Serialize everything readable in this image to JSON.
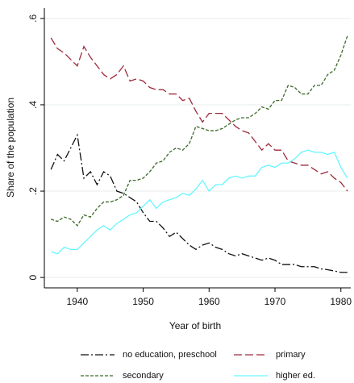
{
  "chart_data": {
    "type": "line",
    "ylabel": "Share of the population",
    "xlabel": "Year of birth",
    "x": [
      1936,
      1937,
      1938,
      1939,
      1940,
      1941,
      1942,
      1943,
      1944,
      1945,
      1946,
      1947,
      1948,
      1949,
      1950,
      1951,
      1952,
      1953,
      1954,
      1955,
      1956,
      1957,
      1958,
      1959,
      1960,
      1961,
      1962,
      1963,
      1964,
      1965,
      1966,
      1967,
      1968,
      1969,
      1970,
      1971,
      1972,
      1973,
      1974,
      1975,
      1976,
      1977,
      1978,
      1979,
      1980,
      1981
    ],
    "series": [
      {
        "name": "no education, preschool",
        "color": "#111111",
        "dash": "10,3,2,3",
        "values": [
          0.25,
          0.285,
          0.27,
          0.3,
          0.33,
          0.23,
          0.245,
          0.215,
          0.245,
          0.235,
          0.2,
          0.195,
          0.185,
          0.175,
          0.15,
          0.13,
          0.13,
          0.115,
          0.095,
          0.105,
          0.09,
          0.075,
          0.065,
          0.075,
          0.08,
          0.07,
          0.065,
          0.055,
          0.05,
          0.055,
          0.05,
          0.045,
          0.04,
          0.045,
          0.04,
          0.03,
          0.03,
          0.03,
          0.025,
          0.025,
          0.025,
          0.02,
          0.018,
          0.015,
          0.012,
          0.012
        ]
      },
      {
        "name": "primary",
        "color": "#9e2a3a",
        "dash": "10,4",
        "values": [
          0.555,
          0.53,
          0.52,
          0.505,
          0.49,
          0.535,
          0.51,
          0.49,
          0.47,
          0.46,
          0.47,
          0.49,
          0.455,
          0.46,
          0.455,
          0.44,
          0.435,
          0.435,
          0.425,
          0.425,
          0.41,
          0.415,
          0.385,
          0.36,
          0.38,
          0.38,
          0.38,
          0.365,
          0.35,
          0.34,
          0.335,
          0.315,
          0.295,
          0.31,
          0.295,
          0.295,
          0.27,
          0.265,
          0.26,
          0.26,
          0.25,
          0.24,
          0.245,
          0.23,
          0.22,
          0.2
        ]
      },
      {
        "name": "secondary",
        "color": "#3a6a28",
        "dash": "4,2",
        "values": [
          0.135,
          0.13,
          0.14,
          0.135,
          0.12,
          0.145,
          0.14,
          0.16,
          0.175,
          0.175,
          0.18,
          0.19,
          0.225,
          0.225,
          0.23,
          0.245,
          0.265,
          0.27,
          0.29,
          0.3,
          0.295,
          0.31,
          0.35,
          0.345,
          0.34,
          0.34,
          0.345,
          0.355,
          0.365,
          0.37,
          0.37,
          0.38,
          0.395,
          0.39,
          0.41,
          0.41,
          0.445,
          0.44,
          0.425,
          0.425,
          0.445,
          0.445,
          0.47,
          0.48,
          0.515,
          0.56
        ]
      },
      {
        "name": "higher ed.",
        "color": "#66f6ff",
        "dash": "none",
        "values": [
          0.06,
          0.055,
          0.07,
          0.065,
          0.065,
          0.08,
          0.095,
          0.11,
          0.12,
          0.11,
          0.125,
          0.135,
          0.145,
          0.15,
          0.165,
          0.18,
          0.16,
          0.175,
          0.18,
          0.185,
          0.195,
          0.19,
          0.205,
          0.225,
          0.2,
          0.215,
          0.215,
          0.23,
          0.235,
          0.23,
          0.235,
          0.235,
          0.255,
          0.26,
          0.255,
          0.265,
          0.265,
          0.275,
          0.29,
          0.295,
          0.29,
          0.29,
          0.285,
          0.29,
          0.255,
          0.23
        ]
      }
    ],
    "xlim": [
      1935,
      1981.5
    ],
    "ylim": [
      -0.024,
      0.624
    ],
    "xticks": [
      1940,
      1950,
      1960,
      1970,
      1980
    ],
    "yticks": [
      {
        "value": 0,
        "label": "0"
      },
      {
        "value": 0.2,
        "label": ".2"
      },
      {
        "value": 0.4,
        "label": ".4"
      },
      {
        "value": 0.6,
        "label": ".6"
      }
    ],
    "grid": true
  }
}
